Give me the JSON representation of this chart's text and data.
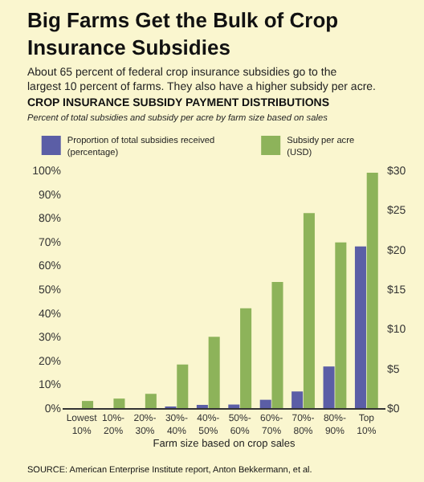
{
  "chart_data": {
    "type": "bar",
    "title": "Big Farms Get the Bulk of Crop\nInsurance Subsidies",
    "subtitle": "About 65 percent of federal crop insurance subsidies go to the\nlargest 10 percent of farms. They also have a higher subsidy per acre.",
    "annotations": [
      "CROP INSURANCE SUBSIDY PAYMENT DISTRIBUTIONS",
      "Percent of total subsidies and subsidy per acre by farm size based on sales",
      "SOURCE: American Enterprise Institute report, Anton Bekkermann, et al."
    ],
    "xlabel": "Farm size based on crop sales",
    "categories": [
      "Lowest\n10%",
      "10%-\n20%",
      "20%-\n30%",
      "30%-\n40%",
      "40%-\n50%",
      "50%-\n60%",
      "60%-\n70%",
      "70%-\n80%",
      "80%-\n90%",
      "Top\n10%"
    ],
    "series": [
      {
        "name": "Proportion of total subsidies received\n(percentage)",
        "color": "#5b5ea6",
        "values": [
          0,
          0,
          0,
          0.3,
          1,
          1.5,
          3.5,
          7,
          17.5,
          68
        ]
      },
      {
        "name": "Subsidy per acre\n(USD)",
        "color": "#8db35a",
        "axis": "y2",
        "values": [
          0.9,
          1.2,
          1.8,
          5.5,
          9,
          12.6,
          15.9,
          24.6,
          20.9,
          29.7
        ]
      }
    ],
    "ylim": [
      0,
      100
    ],
    "yticks": [
      {
        "value": 0,
        "label": "0%"
      },
      {
        "value": 10,
        "label": "10%"
      },
      {
        "value": 20,
        "label": "20%"
      },
      {
        "value": 30,
        "label": "30%"
      },
      {
        "value": 40,
        "label": "40%"
      },
      {
        "value": 50,
        "label": "50%"
      },
      {
        "value": 60,
        "label": "60%"
      },
      {
        "value": 70,
        "label": "70%"
      },
      {
        "value": 80,
        "label": "80%"
      },
      {
        "value": 90,
        "label": "90%"
      },
      {
        "value": 100,
        "label": "100%"
      }
    ],
    "y2lim": [
      0,
      30
    ],
    "y2ticks": [
      {
        "value": 0,
        "label": "$0"
      },
      {
        "value": 5,
        "label": "$5"
      },
      {
        "value": 10,
        "label": "$10"
      },
      {
        "value": 15,
        "label": "$15"
      },
      {
        "value": 20,
        "label": "$20"
      },
      {
        "value": 25,
        "label": "$25"
      },
      {
        "value": 30,
        "label": "$30"
      }
    ],
    "legend": "top",
    "grid": false
  }
}
